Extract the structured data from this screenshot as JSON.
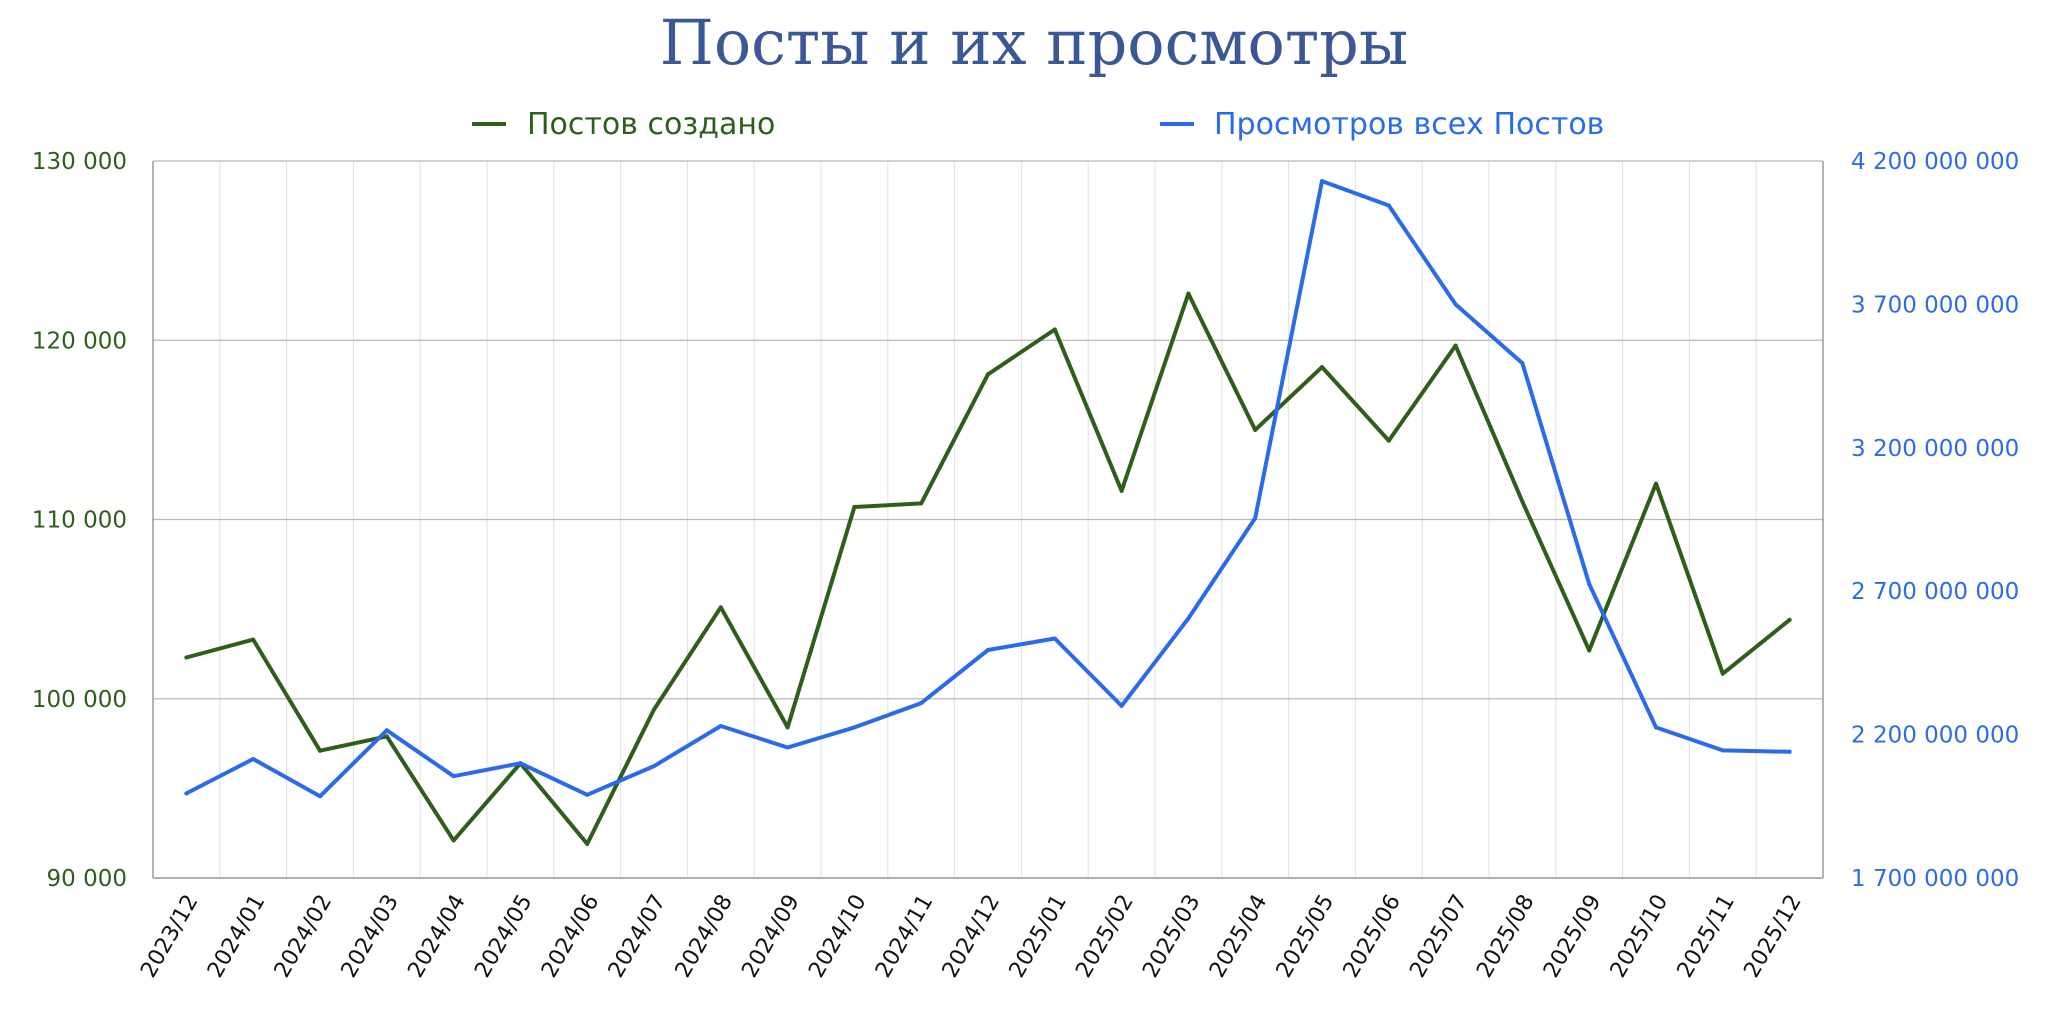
{
  "chart_data": {
    "type": "line",
    "title": "Посты и их просмотры",
    "legend_position": "top",
    "grid": {
      "horizontal": true,
      "vertical": true
    },
    "categories": [
      "2023/12",
      "2024/01",
      "2024/02",
      "2024/03",
      "2024/04",
      "2024/05",
      "2024/06",
      "2024/07",
      "2024/08",
      "2024/09",
      "2024/10",
      "2024/11",
      "2024/12",
      "2025/01",
      "2025/02",
      "2025/03",
      "2025/04",
      "2025/05",
      "2025/06",
      "2025/07",
      "2025/08",
      "2025/09",
      "2025/10",
      "2025/11",
      "2025/12"
    ],
    "y_left": {
      "ylim": [
        90000,
        130000
      ],
      "ticks": [
        90000,
        100000,
        110000,
        120000,
        130000
      ],
      "tick_labels": [
        "90 000",
        "100 000",
        "110 000",
        "120 000",
        "130 000"
      ],
      "color": "#2e5f1a"
    },
    "y_right": {
      "ylim": [
        1700000000,
        4200000000
      ],
      "ticks": [
        1700000000,
        2200000000,
        2700000000,
        3200000000,
        3700000000,
        4200000000
      ],
      "tick_labels": [
        "1 700 000 000",
        "2 200 000 000",
        "2 700 000 000",
        "3 200 000 000",
        "3 700 000 000",
        "4 200 000 000"
      ],
      "color": "#2b6bea"
    },
    "series": [
      {
        "name": "Постов создано",
        "axis": "left",
        "color": "#2e5f1a",
        "values": [
          102300,
          103300,
          97100,
          97900,
          92100,
          96400,
          91900,
          99400,
          105100,
          98400,
          110700,
          110900,
          118100,
          120600,
          111600,
          122600,
          115000,
          118500,
          114400,
          119700,
          111000,
          102700,
          112000,
          101400,
          104400
        ]
      },
      {
        "name": "Просмотров всех Постов",
        "axis": "right",
        "color": "#2b6bea",
        "values": [
          1995000000,
          2115000000,
          1985000000,
          2215000000,
          2055000000,
          2100000000,
          1990000000,
          2090000000,
          2230000000,
          2155000000,
          2225000000,
          2310000000,
          2495000000,
          2535000000,
          2300000000,
          2605000000,
          2955000000,
          4130000000,
          4045000000,
          3700000000,
          3495000000,
          2725000000,
          2225000000,
          2145000000,
          2140000000
        ]
      }
    ]
  }
}
